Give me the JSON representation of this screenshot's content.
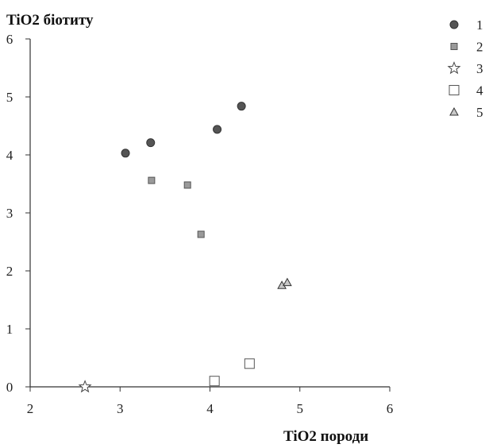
{
  "chart_data": {
    "type": "scatter",
    "title": "",
    "xlabel": "TiO2 породи",
    "ylabel": "TiO2 біотиту",
    "xlim": [
      2,
      6
    ],
    "ylim": [
      0,
      6
    ],
    "x_ticks": [
      "2",
      "3",
      "4",
      "5",
      "6"
    ],
    "y_ticks": [
      "0",
      "1",
      "2",
      "3",
      "4",
      "5",
      "6"
    ],
    "grid": false,
    "legend_position": "top-right",
    "series": [
      {
        "name": "1",
        "marker": "circle",
        "color": "#555555",
        "points": [
          {
            "x": 3.06,
            "y": 4.03
          },
          {
            "x": 3.34,
            "y": 4.21
          },
          {
            "x": 4.08,
            "y": 4.44
          },
          {
            "x": 4.35,
            "y": 4.84
          }
        ]
      },
      {
        "name": "2",
        "marker": "square-filled",
        "color": "#9a9a9a",
        "points": [
          {
            "x": 3.35,
            "y": 3.56
          },
          {
            "x": 3.75,
            "y": 3.48
          },
          {
            "x": 3.9,
            "y": 2.63
          }
        ]
      },
      {
        "name": "3",
        "marker": "star",
        "color": "#ffffff",
        "points": [
          {
            "x": 2.61,
            "y": 0.0
          }
        ]
      },
      {
        "name": "4",
        "marker": "square-open",
        "color": "#ffffff",
        "points": [
          {
            "x": 4.05,
            "y": 0.1
          },
          {
            "x": 4.44,
            "y": 0.4
          }
        ]
      },
      {
        "name": "5",
        "marker": "triangle",
        "color": "#c8c8c8",
        "points": [
          {
            "x": 4.8,
            "y": 1.75
          },
          {
            "x": 4.86,
            "y": 1.8
          }
        ]
      }
    ]
  }
}
